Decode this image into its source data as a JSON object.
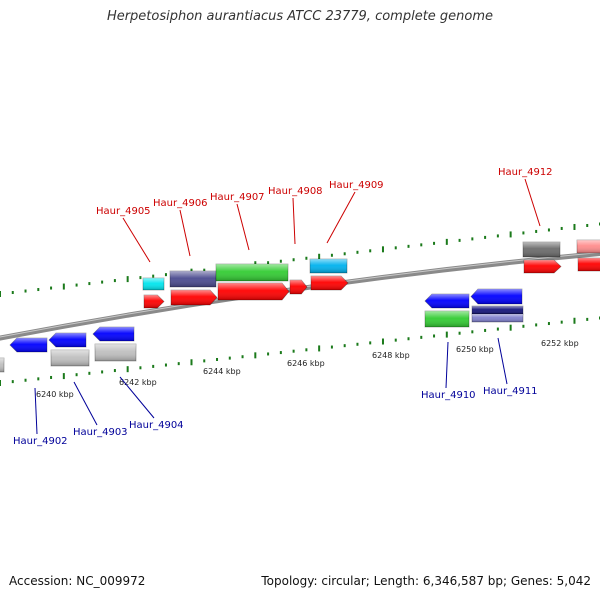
{
  "title": "Herpetosiphon aurantiacus ATCC 23779, complete genome",
  "footer": {
    "accession": "Accession: NC_009972",
    "summary": "Topology: circular; Length: 6,346,587 bp; Genes: 5,042"
  },
  "colors": {
    "forward_label": "#cc0000",
    "reverse_label": "#000099",
    "tick": "#1b7a1b",
    "backbone": "#8a8a8a",
    "red": "#ff0000",
    "blue": "#0000ff",
    "green": "#33cc33",
    "cyan": "#00e5ee",
    "sky": "#00b2ee",
    "slate": "#4b4b8f",
    "navy": "#15157a",
    "lavender": "#8080cc",
    "grey": "#bfbfbf",
    "darkgrey": "#6b6b6b",
    "pink": "#ff8c8c"
  },
  "ruler": {
    "labels": [
      {
        "text": "6240 kbp"
      },
      {
        "text": "6242 kbp"
      },
      {
        "text": "6244 kbp"
      },
      {
        "text": "6246 kbp"
      },
      {
        "text": "6248 kbp"
      },
      {
        "text": "6250 kbp"
      },
      {
        "text": "6252 kbp"
      }
    ]
  },
  "genes_forward": [
    {
      "name": "Haur_4905"
    },
    {
      "name": "Haur_4906"
    },
    {
      "name": "Haur_4907"
    },
    {
      "name": "Haur_4908"
    },
    {
      "name": "Haur_4909"
    },
    {
      "name": "Haur_4912"
    }
  ],
  "genes_reverse": [
    {
      "name": "Haur_4902"
    },
    {
      "name": "Haur_4903"
    },
    {
      "name": "Haur_4904"
    },
    {
      "name": "Haur_4910"
    },
    {
      "name": "Haur_4911"
    }
  ]
}
